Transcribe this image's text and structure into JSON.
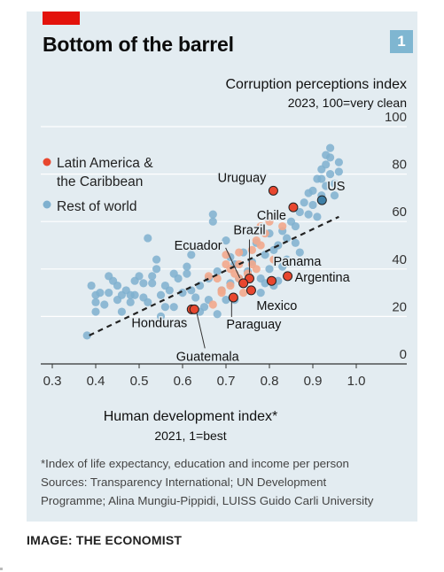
{
  "header": {
    "title": "Bottom of the barrel",
    "badge": "1"
  },
  "chart_data": {
    "type": "scatter",
    "ylabel": "Corruption perceptions index",
    "ylabel_sub": "2023, 100=very clean",
    "xlabel": "Human development index*",
    "xlabel_sub": "2021, 1=best",
    "xlim": [
      0.3,
      1.0
    ],
    "ylim": [
      0,
      100
    ],
    "xticks": [
      "0.3",
      "0.4",
      "0.5",
      "0.6",
      "0.7",
      "0.8",
      "0.9",
      "1.0"
    ],
    "yticks": [
      "0",
      "20",
      "40",
      "60",
      "80",
      "100"
    ],
    "xtick_values": [
      0.3,
      0.4,
      0.5,
      0.6,
      0.7,
      0.8,
      0.9,
      1.0
    ],
    "ytick_values": [
      0,
      20,
      40,
      60,
      80,
      100
    ],
    "grid": true,
    "legend_position": "top-left",
    "legend": [
      {
        "label": "Latin America & the Caribbean",
        "color": "#e8472f"
      },
      {
        "label": "Rest of world",
        "color": "#7fb0cf"
      }
    ],
    "trendline": {
      "x": [
        0.385,
        0.96
      ],
      "y": [
        12,
        62
      ]
    },
    "colors": {
      "latin_highlight": "#e8472f",
      "latin_faded": "#f2a98c",
      "rest": "#7fb0cf",
      "us_highlight": "#3e7fa6"
    },
    "highlighted": [
      {
        "name": "Uruguay",
        "x": 0.809,
        "y": 73
      },
      {
        "name": "Chile",
        "x": 0.855,
        "y": 66
      },
      {
        "name": "US",
        "x": 0.921,
        "y": 69
      },
      {
        "name": "Brazil",
        "x": 0.754,
        "y": 36
      },
      {
        "name": "Ecuador",
        "x": 0.74,
        "y": 34
      },
      {
        "name": "Panama",
        "x": 0.805,
        "y": 35
      },
      {
        "name": "Argentina",
        "x": 0.842,
        "y": 37
      },
      {
        "name": "Mexico",
        "x": 0.758,
        "y": 31
      },
      {
        "name": "Paraguay",
        "x": 0.717,
        "y": 28
      },
      {
        "name": "Honduras",
        "x": 0.621,
        "y": 23
      },
      {
        "name": "Guatemala",
        "x": 0.627,
        "y": 23
      }
    ],
    "series": [
      {
        "name": "Latin America & the Caribbean",
        "points": [
          [
            0.66,
            37
          ],
          [
            0.68,
            36
          ],
          [
            0.7,
            42
          ],
          [
            0.7,
            46
          ],
          [
            0.71,
            40
          ],
          [
            0.72,
            38
          ],
          [
            0.73,
            47
          ],
          [
            0.73,
            36
          ],
          [
            0.74,
            30
          ],
          [
            0.76,
            42
          ],
          [
            0.76,
            48
          ],
          [
            0.77,
            52
          ],
          [
            0.78,
            58
          ],
          [
            0.79,
            55
          ],
          [
            0.8,
            60
          ],
          [
            0.78,
            50
          ],
          [
            0.67,
            25
          ],
          [
            0.69,
            30
          ],
          [
            0.71,
            33
          ],
          [
            0.75,
            38
          ],
          [
            0.77,
            40
          ],
          [
            0.81,
            44
          ],
          [
            0.83,
            58
          ],
          [
            0.69,
            31
          ],
          [
            0.73,
            42
          ]
        ]
      },
      {
        "name": "Rest of world",
        "points": [
          [
            0.39,
            33
          ],
          [
            0.4,
            29
          ],
          [
            0.4,
            22
          ],
          [
            0.42,
            25
          ],
          [
            0.43,
            30
          ],
          [
            0.45,
            27
          ],
          [
            0.46,
            22
          ],
          [
            0.47,
            31
          ],
          [
            0.48,
            26
          ],
          [
            0.49,
            29
          ],
          [
            0.5,
            37
          ],
          [
            0.51,
            34
          ],
          [
            0.52,
            26
          ],
          [
            0.52,
            53
          ],
          [
            0.53,
            34
          ],
          [
            0.54,
            40
          ],
          [
            0.55,
            29
          ],
          [
            0.55,
            20
          ],
          [
            0.56,
            24
          ],
          [
            0.57,
            31
          ],
          [
            0.58,
            38
          ],
          [
            0.59,
            36
          ],
          [
            0.6,
            30
          ],
          [
            0.61,
            41
          ],
          [
            0.62,
            46
          ],
          [
            0.63,
            28
          ],
          [
            0.64,
            33
          ],
          [
            0.65,
            24
          ],
          [
            0.66,
            36
          ],
          [
            0.67,
            60
          ],
          [
            0.67,
            63
          ],
          [
            0.68,
            39
          ],
          [
            0.69,
            31
          ],
          [
            0.7,
            52
          ],
          [
            0.71,
            45
          ],
          [
            0.72,
            42
          ],
          [
            0.73,
            36
          ],
          [
            0.74,
            47
          ],
          [
            0.75,
            39
          ],
          [
            0.76,
            43
          ],
          [
            0.77,
            51
          ],
          [
            0.78,
            36
          ],
          [
            0.79,
            46
          ],
          [
            0.8,
            40
          ],
          [
            0.8,
            55
          ],
          [
            0.81,
            48
          ],
          [
            0.82,
            50
          ],
          [
            0.83,
            56
          ],
          [
            0.84,
            53
          ],
          [
            0.85,
            60
          ],
          [
            0.86,
            58
          ],
          [
            0.87,
            64
          ],
          [
            0.88,
            68
          ],
          [
            0.89,
            63
          ],
          [
            0.9,
            67
          ],
          [
            0.9,
            73
          ],
          [
            0.91,
            78
          ],
          [
            0.92,
            82
          ],
          [
            0.93,
            84
          ],
          [
            0.93,
            75
          ],
          [
            0.94,
            80
          ],
          [
            0.94,
            87
          ],
          [
            0.95,
            71
          ],
          [
            0.95,
            76
          ],
          [
            0.96,
            81
          ],
          [
            0.96,
            85
          ],
          [
            0.92,
            71
          ],
          [
            0.91,
            62
          ],
          [
            0.89,
            72
          ],
          [
            0.87,
            47
          ],
          [
            0.86,
            51
          ],
          [
            0.84,
            44
          ],
          [
            0.83,
            41
          ],
          [
            0.82,
            35
          ],
          [
            0.81,
            33
          ],
          [
            0.79,
            34
          ],
          [
            0.78,
            30
          ],
          [
            0.7,
            27
          ],
          [
            0.68,
            21
          ],
          [
            0.66,
            27
          ],
          [
            0.64,
            22
          ],
          [
            0.62,
            31
          ],
          [
            0.61,
            38
          ],
          [
            0.58,
            24
          ],
          [
            0.56,
            33
          ],
          [
            0.54,
            44
          ],
          [
            0.53,
            37
          ],
          [
            0.51,
            28
          ],
          [
            0.49,
            35
          ],
          [
            0.48,
            29
          ],
          [
            0.46,
            29
          ],
          [
            0.45,
            33
          ],
          [
            0.44,
            35
          ],
          [
            0.43,
            37
          ],
          [
            0.41,
            30
          ],
          [
            0.4,
            26
          ],
          [
            0.38,
            12
          ],
          [
            0.94,
            91
          ],
          [
            0.93,
            88
          ],
          [
            0.92,
            78
          ],
          [
            0.71,
            34
          ],
          [
            0.72,
            27
          ]
        ]
      }
    ]
  },
  "footnote": {
    "line1": "*Index of life expectancy, education and income per person",
    "line2": "Sources: Transparency International; UN Development",
    "line3": "Programme; Alina Mungiu-Pippidi, LUISS Guido Carli University"
  },
  "credit": "IMAGE: THE ECONOMIST"
}
